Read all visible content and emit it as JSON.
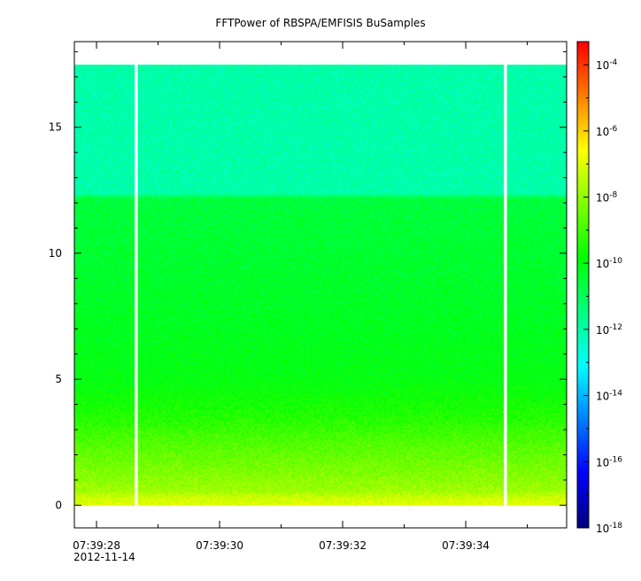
{
  "chart_data": {
    "type": "heatmap",
    "title": "FFTPower of RBSPA/EMFISIS  BuSamples",
    "x_axis": {
      "tick_labels": [
        "07:39:28",
        "07:39:30",
        "07:39:32",
        "07:39:34"
      ],
      "tick_seconds": [
        28,
        30,
        32,
        34
      ],
      "sub_label": "2012-11-14",
      "range_seconds": [
        27.64,
        35.64
      ]
    },
    "y_axis": {
      "tick_labels": [
        "0",
        "5",
        "10",
        "15"
      ],
      "tick_values": [
        0,
        5,
        10,
        15
      ],
      "range": [
        -0.9,
        18.4
      ],
      "data_top": 17.5
    },
    "colorbar": {
      "scale": "log",
      "tick_labels": [
        {
          "base": "10",
          "exp": "-4"
        },
        {
          "base": "10",
          "exp": "-6"
        },
        {
          "base": "10",
          "exp": "-8"
        },
        {
          "base": "10",
          "exp": "-10"
        },
        {
          "base": "10",
          "exp": "-12"
        },
        {
          "base": "10",
          "exp": "-14"
        },
        {
          "base": "10",
          "exp": "-16"
        },
        {
          "base": "10",
          "exp": "-18"
        }
      ],
      "tick_exponents": [
        -4,
        -6,
        -8,
        -10,
        -12,
        -14,
        -16,
        -18
      ],
      "range_exponent": [
        -18,
        -3.3
      ]
    },
    "data_gaps_seconds": [
      [
        28.62,
        28.67
      ],
      [
        34.62,
        34.67
      ]
    ],
    "power_profile": [
      {
        "y": 0.0,
        "log_power": -6.9
      },
      {
        "y": 0.3,
        "log_power": -7.2
      },
      {
        "y": 0.6,
        "log_power": -7.8
      },
      {
        "y": 1.5,
        "log_power": -8.3
      },
      {
        "y": 2.5,
        "log_power": -8.8
      },
      {
        "y": 3.5,
        "log_power": -9.4
      },
      {
        "y": 5.0,
        "log_power": -10.0
      },
      {
        "y": 8.0,
        "log_power": -10.3
      },
      {
        "y": 12.2,
        "log_power": -10.6
      },
      {
        "y": 12.4,
        "log_power": -12.0
      },
      {
        "y": 17.5,
        "log_power": -12.0
      }
    ]
  },
  "colors": {
    "gap": "#ffffff",
    "axis": "#000000",
    "colormap": [
      "#00007f",
      "#0000ff",
      "#007fff",
      "#00ffff",
      "#00ff7f",
      "#00ff00",
      "#7fff00",
      "#ffff00",
      "#ff7f00",
      "#ff0000"
    ]
  }
}
